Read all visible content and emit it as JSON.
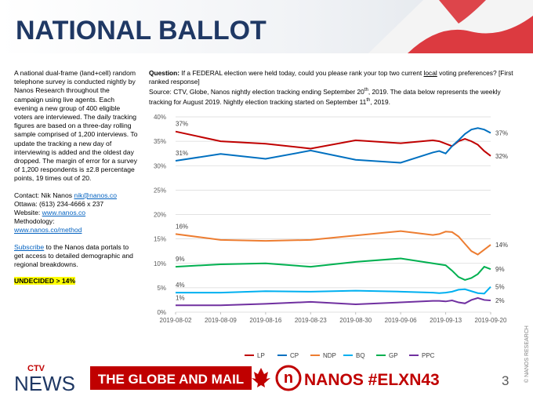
{
  "header": {
    "title": "NATIONAL BALLOT"
  },
  "sidebar": {
    "description": "A national dual-frame (land+cell) random telephone survey is conducted nightly by Nanos Research throughout the campaign using live agents.  Each evening a new group of 400 eligible voters are interviewed.  The daily tracking figures are based on a three-day rolling sample comprised of 1,200 interviews.  To update the tracking a new day of interviewing is added and the oldest day dropped. The margin of error for a survey of 1,200 respondents is ±2.8 percentage points, 19 times out of 20.",
    "contact_label": "Contact:  Nik Nanos ",
    "contact_email": "nik@nanos.co",
    "phone": "Ottawa: (613)  234-4666  x 237",
    "website_label": "Website: ",
    "website": "www.nanos.co",
    "methodology_label": "Methodology:",
    "methodology_link": "www.nanos.co/method",
    "subscribe_link": "Subscribe",
    "subscribe_text": " to the Nanos data portals to get access to detailed demographic and regional breakdowns.",
    "undecided": "UNDECIDED > 14%"
  },
  "question": {
    "label": "Question:",
    "text_before": " If a FEDERAL election were held today, could you please rank your top two current ",
    "underlined": "local",
    "text_after": " voting preferences?  [First ranked response]",
    "source_1": "Source: CTV, Globe, Nanos nightly election tracking ending September 20",
    "sup_1": "th",
    "source_2": ", 2019.  The data below represents the weekly tracking for August 2019. Nightly election tracking started on September 11",
    "sup_2": "th",
    "source_3": ", 2019."
  },
  "chart_data": {
    "type": "line",
    "x": [
      "2019-08-02",
      "2019-08-09",
      "2019-08-16",
      "2019-08-23",
      "2019-08-30",
      "2019-09-06",
      "2019-09-11",
      "2019-09-12",
      "2019-09-13",
      "2019-09-14",
      "2019-09-15",
      "2019-09-16",
      "2019-09-17",
      "2019-09-18",
      "2019-09-19",
      "2019-09-20"
    ],
    "xlim": [
      "2019-08-02",
      "2019-09-20"
    ],
    "xticks": [
      "2019-08-02",
      "2019-08-09",
      "2019-08-16",
      "2019-08-23",
      "2019-08-30",
      "2019-09-06",
      "2019-09-13",
      "2019-09-20"
    ],
    "ylim": [
      0,
      40
    ],
    "yticks": [
      {
        "value": 0,
        "label": "0%"
      },
      {
        "value": 5,
        "label": "5%"
      },
      {
        "value": 10,
        "label": "10%"
      },
      {
        "value": 15,
        "label": "15%"
      },
      {
        "value": 20,
        "label": "20%"
      },
      {
        "value": 25,
        "label": "25%"
      },
      {
        "value": 30,
        "label": "30%"
      },
      {
        "value": 35,
        "label": "35%"
      },
      {
        "value": 40,
        "label": "40%"
      }
    ],
    "grid": true,
    "series": [
      {
        "name": "LP",
        "color": "#c00000",
        "values": [
          37,
          35,
          34.5,
          33.5,
          35.2,
          34.6,
          35.2,
          35,
          34.5,
          34,
          35,
          35.5,
          35,
          34.3,
          33,
          32
        ],
        "value_labels": [
          "37%",
          null,
          null,
          null,
          null,
          null,
          null,
          null,
          null,
          null,
          null,
          null,
          null,
          null,
          null,
          "32%"
        ]
      },
      {
        "name": "CP",
        "color": "#0070c0",
        "values": [
          31,
          32.4,
          31.4,
          33.1,
          31.2,
          30.6,
          32.7,
          33,
          32.5,
          34,
          35.2,
          36.5,
          37.4,
          37.7,
          37.4,
          36.7
        ],
        "value_labels": [
          "31%",
          null,
          null,
          null,
          null,
          null,
          null,
          null,
          null,
          null,
          null,
          null,
          null,
          null,
          null,
          "37%"
        ]
      },
      {
        "name": "NDP",
        "color": "#ed7d31",
        "values": [
          16,
          14.8,
          14.6,
          14.8,
          15.7,
          16.6,
          15.8,
          16,
          16.5,
          16.4,
          15.5,
          14,
          12.5,
          11.8,
          12.8,
          13.8
        ],
        "value_labels": [
          "16%",
          null,
          null,
          null,
          null,
          null,
          null,
          null,
          null,
          null,
          null,
          null,
          null,
          null,
          null,
          "14%"
        ]
      },
      {
        "name": "BQ",
        "color": "#00b0f0",
        "values": [
          4,
          4,
          4.3,
          4.2,
          4.4,
          4.2,
          4,
          3.9,
          4,
          4.2,
          4.6,
          4.7,
          4.3,
          3.9,
          3.8,
          5.2
        ],
        "value_labels": [
          "4%",
          null,
          null,
          null,
          null,
          null,
          null,
          null,
          null,
          null,
          null,
          null,
          null,
          null,
          null,
          "5%"
        ]
      },
      {
        "name": "GP",
        "color": "#00b050",
        "values": [
          9.3,
          9.8,
          10,
          9.3,
          10.3,
          11,
          10,
          9.8,
          9.6,
          8.5,
          7.2,
          6.6,
          7,
          7.8,
          9.3,
          8.8
        ],
        "value_labels": [
          "9%",
          null,
          null,
          null,
          null,
          null,
          null,
          null,
          null,
          null,
          null,
          null,
          null,
          null,
          null,
          "9%"
        ]
      },
      {
        "name": "PPC",
        "color": "#7030a0",
        "values": [
          1.4,
          1.4,
          1.7,
          2.1,
          1.6,
          2,
          2.3,
          2.3,
          2.2,
          2.4,
          2,
          1.8,
          2.5,
          2.9,
          2.5,
          2.4
        ],
        "value_labels": [
          "1%",
          null,
          null,
          null,
          null,
          null,
          null,
          null,
          null,
          null,
          null,
          null,
          null,
          null,
          null,
          "2%"
        ]
      }
    ]
  },
  "footer": {
    "ctv": "CTV",
    "news": "NEWS",
    "globe": "THE GLOBE AND MAIL",
    "nanos_letter": "n",
    "nanos": "NANOS #ELXN43",
    "page": "3",
    "copyright": "© NANOS RESEARCH"
  }
}
